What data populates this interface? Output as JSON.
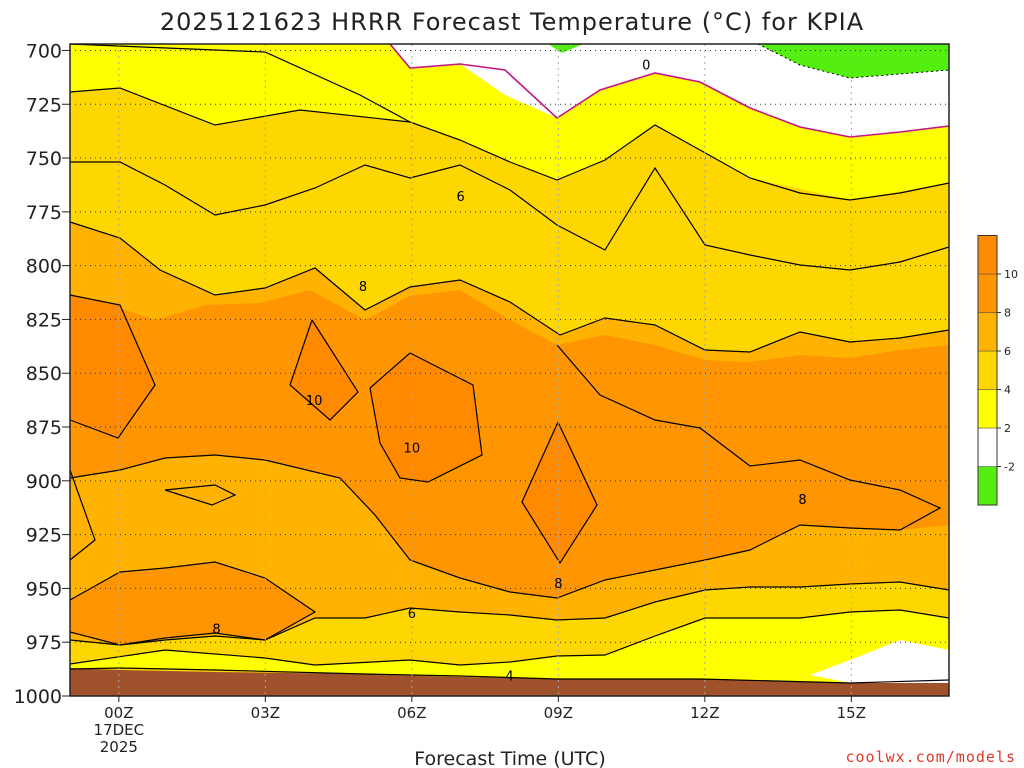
{
  "chart_data": {
    "type": "heatmap",
    "title": "2025121623 HRRR Forecast Temperature (°C) for KPIA",
    "xlabel": "Forecast Time (UTC)",
    "ylabel": "",
    "credit": "coolwx.com/models",
    "x_ticks": [
      {
        "hour": 0,
        "lines": [
          "00Z",
          "17DEC",
          "2025"
        ]
      },
      {
        "hour": 3,
        "lines": [
          "03Z"
        ]
      },
      {
        "hour": 6,
        "lines": [
          "06Z"
        ]
      },
      {
        "hour": 9,
        "lines": [
          "09Z"
        ]
      },
      {
        "hour": 12,
        "lines": [
          "12Z"
        ]
      },
      {
        "hour": 15,
        "lines": [
          "15Z"
        ]
      }
    ],
    "y_ticks": [
      700,
      725,
      750,
      775,
      800,
      825,
      850,
      875,
      900,
      925,
      950,
      975,
      1000
    ],
    "xlim": [
      -1,
      17
    ],
    "ylim": [
      1000,
      697
    ],
    "legend": {
      "placement": "right",
      "levels": [
        -2,
        2,
        4,
        6,
        8,
        10
      ],
      "colors": [
        "#55ee11",
        "#ffffff",
        "#ffff00",
        "#ffd700",
        "#ffb300",
        "#ff9500",
        "#ff8a00"
      ]
    },
    "contour_labels": [
      {
        "text": "0",
        "hour": 10.8,
        "p": 707
      },
      {
        "text": "6",
        "hour": 7.0,
        "p": 768
      },
      {
        "text": "8",
        "hour": 5.0,
        "p": 810
      },
      {
        "text": "10",
        "hour": 4.0,
        "p": 863
      },
      {
        "text": "10",
        "hour": 6.0,
        "p": 885
      },
      {
        "text": "8",
        "hour": 14.0,
        "p": 909
      },
      {
        "text": "8",
        "hour": 9.0,
        "p": 948
      },
      {
        "text": "6",
        "hour": 6.0,
        "p": 962
      },
      {
        "text": "8",
        "hour": 2.0,
        "p": 969
      },
      {
        "text": "4",
        "hour": 8.0,
        "p": 991
      }
    ],
    "colors": {
      "t_ge_10": "#ff8a00",
      "t_8_10": "#ff9500",
      "t_6_8": "#ffb300",
      "t_4_6": "#ffd700",
      "t_2_4": "#ffff00",
      "t_m2_2": "#ffffff",
      "t_lt_m2": "#55ee11",
      "zero_line": "#c71585",
      "ground": "#a0522d"
    }
  }
}
